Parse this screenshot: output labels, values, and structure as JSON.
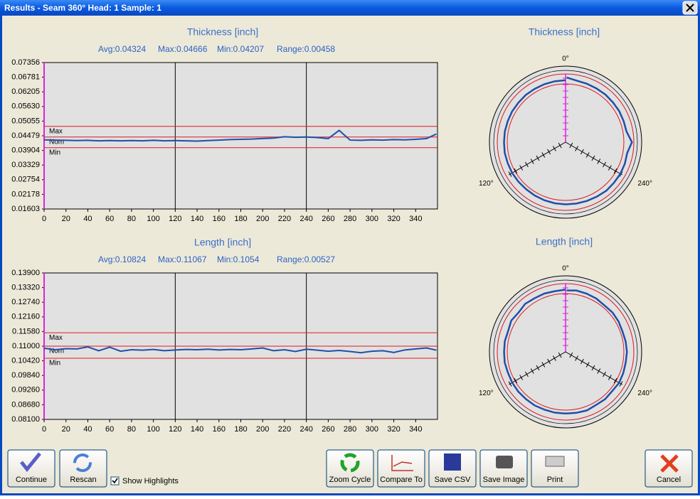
{
  "window": {
    "title": "Results - Seam 360° Head: 1  Sample: 1"
  },
  "chart_data": [
    {
      "type": "line",
      "title": "Thickness [inch]",
      "stats": [
        "Avg:0.04324",
        "Max:0.04666",
        "Min:0.04207",
        "Range:0.00458"
      ],
      "x": [
        0,
        10,
        20,
        30,
        40,
        50,
        60,
        70,
        80,
        90,
        100,
        110,
        120,
        130,
        140,
        150,
        160,
        170,
        180,
        190,
        200,
        210,
        220,
        230,
        240,
        250,
        260,
        270,
        280,
        290,
        300,
        310,
        320,
        330,
        340,
        350,
        359
      ],
      "series": [
        {
          "color": "#1f4fa8",
          "values": [
            0.0432,
            0.0431,
            0.043,
            0.0429,
            0.043,
            0.0428,
            0.0429,
            0.0428,
            0.0429,
            0.0428,
            0.043,
            0.0428,
            0.0429,
            0.0428,
            0.0427,
            0.0429,
            0.0431,
            0.0433,
            0.0434,
            0.0435,
            0.0437,
            0.0439,
            0.0444,
            0.0442,
            0.0443,
            0.0441,
            0.0437,
            0.0469,
            0.0431,
            0.043,
            0.0432,
            0.0431,
            0.0433,
            0.0432,
            0.0434,
            0.0437,
            0.0455
          ]
        }
      ],
      "xlim": [
        0,
        360
      ],
      "xticks": [
        0,
        20,
        40,
        60,
        80,
        100,
        120,
        140,
        160,
        180,
        200,
        220,
        240,
        260,
        280,
        300,
        320,
        340
      ],
      "ylim": [
        0.01603,
        0.07356
      ],
      "yticks": [
        0.01603,
        0.02178,
        0.02754,
        0.03329,
        0.03904,
        0.04479,
        0.05055,
        {
          "value": 0.0563,
          "label": "0.05630"
        },
        0.06205,
        0.06781,
        0.07356
      ],
      "limits": [
        {
          "name": "Max",
          "value": 0.0485,
          "color": "#e0191d"
        },
        {
          "name": "Nom",
          "value": 0.0443,
          "color": "#e0191d"
        },
        {
          "name": "Min",
          "value": 0.0401,
          "color": "#e0191d"
        }
      ],
      "dividers": [
        120,
        240
      ]
    },
    {
      "type": "line",
      "title": "Length [inch]",
      "stats": [
        "Avg:0.10824",
        "Max:0.11067",
        "Min:0.1054",
        "Range:0.00527"
      ],
      "x": [
        0,
        10,
        20,
        30,
        40,
        50,
        60,
        70,
        80,
        90,
        100,
        110,
        120,
        130,
        140,
        150,
        160,
        170,
        180,
        190,
        200,
        210,
        220,
        230,
        240,
        250,
        260,
        270,
        280,
        290,
        300,
        310,
        320,
        330,
        340,
        350,
        359
      ],
      "series": [
        {
          "color": "#1f4fa8",
          "values": [
            0.1092,
            0.1086,
            0.109,
            0.1089,
            0.1097,
            0.1082,
            0.1096,
            0.108,
            0.1086,
            0.1084,
            0.1087,
            0.1082,
            0.1085,
            0.1087,
            0.1086,
            0.1088,
            0.1085,
            0.1087,
            0.1086,
            0.1089,
            0.1093,
            0.1082,
            0.1086,
            0.1079,
            0.1088,
            0.1084,
            0.108,
            0.1083,
            0.1079,
            0.1074,
            0.108,
            0.1082,
            0.1075,
            0.1085,
            0.1089,
            0.1093,
            0.1084
          ]
        }
      ],
      "xlim": [
        0,
        360
      ],
      "xticks": [
        0,
        20,
        40,
        60,
        80,
        100,
        120,
        140,
        160,
        180,
        200,
        220,
        240,
        260,
        280,
        300,
        320,
        340
      ],
      "ylim": [
        0.081,
        0.139
      ],
      "yticks": [
        {
          "value": 0.081,
          "label": "0.08100"
        },
        {
          "value": 0.0868,
          "label": "0.08680"
        },
        {
          "value": 0.0926,
          "label": "0.09260"
        },
        {
          "value": 0.0984,
          "label": "0.09840"
        },
        {
          "value": 0.1042,
          "label": "0.10420"
        },
        {
          "value": 0.11,
          "label": "0.11000"
        },
        {
          "value": 0.1158,
          "label": "0.11580"
        },
        {
          "value": 0.1216,
          "label": "0.12160"
        },
        {
          "value": 0.1274,
          "label": "0.12740"
        },
        {
          "value": 0.1332,
          "label": "0.13320"
        },
        {
          "value": 0.139,
          "label": "0.13900"
        }
      ],
      "limits": [
        {
          "name": "Max",
          "value": 0.1153,
          "color": "#e0191d"
        },
        {
          "name": "Nom",
          "value": 0.11,
          "color": "#e0191d"
        },
        {
          "name": "Min",
          "value": 0.1052,
          "color": "#e0191d"
        }
      ],
      "dividers": [
        120,
        240
      ]
    },
    {
      "type": "polar",
      "title": "Thickness [inch]",
      "angle_ticks": [
        {
          "value": 0,
          "label": "0°"
        },
        {
          "value": 120,
          "label": "120°"
        },
        {
          "value": 240,
          "label": "240°"
        }
      ]
    },
    {
      "type": "polar",
      "title": "Length [inch]",
      "angle_ticks": [
        {
          "value": 0,
          "label": "0°"
        },
        {
          "value": 120,
          "label": "120°"
        },
        {
          "value": 240,
          "label": "240°"
        }
      ]
    }
  ],
  "buttons": [
    "Continue",
    "Rescan",
    "Zoom Cycle",
    "Compare To",
    "Save CSV",
    "Save Image",
    "Print",
    "Cancel"
  ],
  "checkbox": {
    "label": "Show Highlights",
    "checked": true
  }
}
